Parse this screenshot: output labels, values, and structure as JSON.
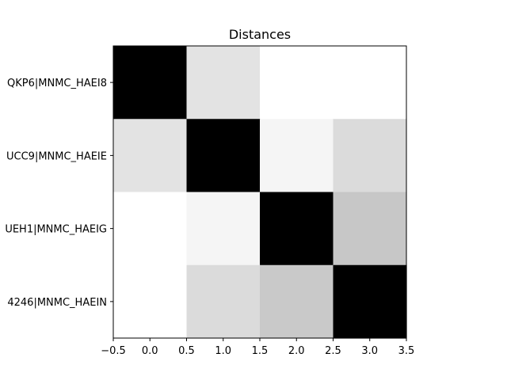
{
  "chart_data": {
    "type": "heatmap",
    "title": "Distances",
    "xlabel": "",
    "ylabel": "",
    "colormap": "gray",
    "colors": {
      "low": "#000000",
      "high": "#ffffff",
      "axis": "#000000",
      "background": "#ffffff"
    },
    "x_ticks": [
      -0.5,
      0.0,
      0.5,
      1.0,
      1.5,
      2.0,
      2.5,
      3.0,
      3.5
    ],
    "x_tick_labels": [
      "−0.5",
      "0.0",
      "0.5",
      "1.0",
      "1.5",
      "2.0",
      "2.5",
      "3.0",
      "3.5"
    ],
    "xlim": [
      -0.5,
      3.5
    ],
    "ylim": [
      3.5,
      -0.5
    ],
    "row_labels": [
      "QKP6|MNMC_HAEI8",
      "UCC9|MNMC_HAEIE",
      "UEH1|MNMC_HAEIG",
      "4246|MNMC_HAEIN"
    ],
    "matrix": [
      [
        0.0,
        0.89,
        1.0,
        1.0
      ],
      [
        0.89,
        0.0,
        0.96,
        0.86
      ],
      [
        1.0,
        0.96,
        0.0,
        0.78
      ],
      [
        1.0,
        0.86,
        0.79,
        0.0
      ]
    ]
  }
}
